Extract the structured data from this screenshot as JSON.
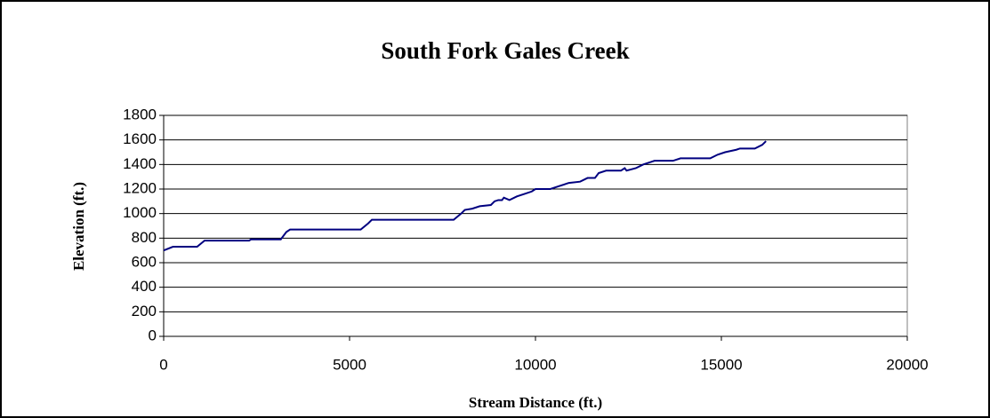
{
  "chart_data": {
    "type": "line",
    "title": "South Fork Gales Creek",
    "xlabel": "Stream Distance (ft.)",
    "ylabel": "Elevation (ft.)",
    "x": [
      0,
      250,
      900,
      1100,
      2300,
      2350,
      3150,
      3300,
      3400,
      5300,
      5500,
      5600,
      7800,
      8000,
      8100,
      8300,
      8500,
      8800,
      8900,
      9000,
      9100,
      9150,
      9300,
      9500,
      9700,
      9900,
      10000,
      10400,
      10600,
      10900,
      11200,
      11400,
      11600,
      11700,
      11900,
      12300,
      12400,
      12450,
      12700,
      12900,
      13100,
      13200,
      13700,
      13900,
      14700,
      14900,
      15100,
      15400,
      15500,
      15900,
      16100,
      16200
    ],
    "series": [
      {
        "name": "Elevation",
        "color": "#000080",
        "values": [
          700,
          730,
          730,
          780,
          780,
          790,
          790,
          850,
          870,
          870,
          920,
          950,
          950,
          1000,
          1030,
          1040,
          1060,
          1070,
          1100,
          1110,
          1110,
          1130,
          1110,
          1140,
          1160,
          1180,
          1200,
          1200,
          1220,
          1250,
          1260,
          1290,
          1290,
          1330,
          1350,
          1350,
          1370,
          1350,
          1370,
          1400,
          1420,
          1430,
          1430,
          1450,
          1450,
          1480,
          1500,
          1520,
          1530,
          1530,
          1560,
          1590
        ]
      }
    ],
    "xlim": [
      0,
      20000
    ],
    "xticks": [
      0,
      5000,
      10000,
      15000,
      20000
    ],
    "ylim": [
      0,
      1800
    ],
    "yticks": [
      0,
      200,
      400,
      600,
      800,
      1000,
      1200,
      1400,
      1600,
      1800
    ],
    "grid": true
  }
}
